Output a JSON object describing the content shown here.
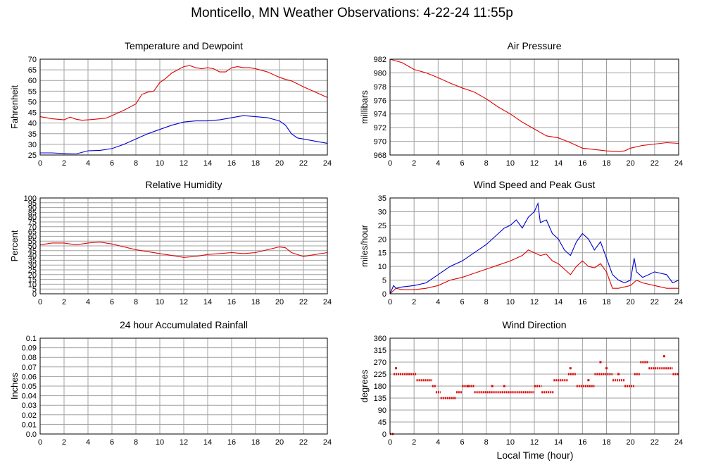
{
  "title": "Monticello, MN Weather Observations: 4-22-24 11:55p",
  "x_axis_label": "Local Time (hour)",
  "chart_data": [
    {
      "type": "line",
      "title": "Temperature and Dewpoint",
      "ylabel": "Fahrenheit",
      "xlabel": "",
      "xlim": [
        0,
        24
      ],
      "ylim": [
        25,
        70
      ],
      "xticks": [
        0,
        2,
        4,
        6,
        8,
        10,
        12,
        14,
        16,
        18,
        20,
        22,
        24
      ],
      "yticks": [
        "25",
        "30",
        "35",
        "40",
        "45",
        "50",
        "55",
        "60",
        "65",
        "70"
      ],
      "grid": true,
      "series": [
        {
          "color": "#e00000",
          "x": [
            0,
            1,
            2,
            2.5,
            3,
            3.5,
            4,
            5,
            5.5,
            6,
            7,
            8,
            8.5,
            9,
            9.5,
            10,
            10.5,
            11,
            11.5,
            12,
            12.5,
            13,
            13.5,
            14,
            14.5,
            15,
            15.5,
            16,
            16.5,
            17,
            17.5,
            18,
            19,
            20,
            20.5,
            21,
            22,
            23,
            24
          ],
          "y": [
            43,
            42,
            41.5,
            42.8,
            41.8,
            41.3,
            41.5,
            42,
            42.3,
            43.5,
            46,
            49,
            53.5,
            54.5,
            55,
            59,
            61,
            63.5,
            65,
            66.5,
            67,
            66,
            65.5,
            66,
            65.5,
            64,
            64,
            66,
            66.5,
            66,
            66,
            65.5,
            64,
            61.5,
            60.5,
            59.8,
            57,
            54.5,
            52
          ]
        },
        {
          "color": "#0000cc",
          "x": [
            0,
            1,
            2,
            3,
            4,
            5,
            6,
            7,
            8,
            9,
            10,
            11,
            12,
            13,
            14,
            15,
            16,
            17,
            18,
            19,
            20,
            20.5,
            21,
            21.5,
            22,
            23,
            24
          ],
          "y": [
            26,
            26,
            25.7,
            25.5,
            27,
            27.2,
            28,
            30,
            32.5,
            35,
            37,
            39,
            40.5,
            41,
            41,
            41.5,
            42.5,
            43.5,
            43,
            42.5,
            41,
            39,
            35,
            33,
            32.5,
            31.5,
            30.5
          ]
        }
      ]
    },
    {
      "type": "line",
      "title": "Air Pressure",
      "ylabel": "millibars",
      "xlabel": "",
      "xlim": [
        0,
        24
      ],
      "ylim": [
        968,
        982
      ],
      "xticks": [
        0,
        2,
        4,
        6,
        8,
        10,
        12,
        14,
        16,
        18,
        20,
        22,
        24
      ],
      "yticks": [
        "968",
        "970",
        "972",
        "974",
        "976",
        "978",
        "980",
        "982"
      ],
      "grid": true,
      "series": [
        {
          "color": "#e00000",
          "x": [
            0,
            1,
            2,
            3,
            4,
            5,
            6,
            7,
            8,
            9,
            10,
            11,
            12,
            13,
            14,
            15,
            16,
            17,
            18,
            19,
            19.5,
            20,
            21,
            22,
            23,
            24
          ],
          "y": [
            982,
            981.5,
            980.5,
            980,
            979.3,
            978.5,
            977.8,
            977.2,
            976.2,
            975,
            974,
            972.8,
            971.8,
            970.8,
            970.5,
            969.8,
            969,
            968.8,
            968.6,
            968.5,
            968.6,
            969,
            969.4,
            969.6,
            969.8,
            969.7
          ]
        }
      ]
    },
    {
      "type": "line",
      "title": "Relative Humidity",
      "ylabel": "Percent",
      "xlabel": "",
      "xlim": [
        0,
        24
      ],
      "ylim": [
        0,
        100
      ],
      "xticks": [
        0,
        2,
        4,
        6,
        8,
        10,
        12,
        14,
        16,
        18,
        20,
        22,
        24
      ],
      "yticks": [
        "0",
        "5",
        "10",
        "15",
        "20",
        "25",
        "30",
        "35",
        "40",
        "45",
        "50",
        "55",
        "60",
        "65",
        "70",
        "75",
        "80",
        "85",
        "90",
        "95",
        "100"
      ],
      "grid": true,
      "series": [
        {
          "color": "#e00000",
          "x": [
            0,
            1,
            2,
            3,
            4,
            5,
            6,
            7,
            8,
            9,
            10,
            11,
            12,
            13,
            14,
            15,
            16,
            17,
            18,
            19,
            20,
            20.5,
            21,
            22,
            23,
            24
          ],
          "y": [
            51,
            53,
            53,
            51,
            53,
            54,
            52,
            49,
            46,
            44,
            42,
            40,
            38,
            39,
            41,
            42,
            43,
            42,
            43,
            46,
            49,
            48,
            43,
            39,
            41,
            43
          ]
        }
      ]
    },
    {
      "type": "line",
      "title": "Wind Speed and Peak Gust",
      "ylabel": "miles/hour",
      "xlabel": "",
      "xlim": [
        0,
        24
      ],
      "ylim": [
        0,
        35
      ],
      "xticks": [
        0,
        2,
        4,
        6,
        8,
        10,
        12,
        14,
        16,
        18,
        20,
        22,
        24
      ],
      "yticks": [
        "0",
        "5",
        "10",
        "15",
        "20",
        "25",
        "30",
        "35"
      ],
      "grid": true,
      "series": [
        {
          "color": "#e00000",
          "x": [
            0,
            0.5,
            1,
            2,
            3,
            4,
            5,
            6,
            7,
            8,
            9,
            10,
            10.5,
            11,
            11.5,
            12,
            12.5,
            13,
            13.5,
            14,
            14.5,
            15,
            15.5,
            16,
            16.5,
            17,
            17.5,
            18,
            18.5,
            19,
            20,
            20.5,
            21,
            22,
            23,
            24
          ],
          "y": [
            0,
            2,
            1.5,
            1.5,
            2,
            3,
            5,
            6,
            7.5,
            9,
            10.5,
            12,
            13,
            14,
            16,
            15,
            14,
            14.5,
            12,
            11,
            9,
            7,
            10,
            12,
            10,
            9.5,
            11,
            8,
            2,
            2,
            3,
            5,
            4,
            3,
            2,
            2
          ]
        },
        {
          "color": "#0000cc",
          "x": [
            0,
            0.3,
            0.5,
            1,
            2,
            3,
            4,
            5,
            6,
            7,
            8,
            9,
            9.5,
            10,
            10.5,
            11,
            11.5,
            12,
            12.3,
            12.5,
            13,
            13.5,
            14,
            14.5,
            15,
            15.5,
            16,
            16.5,
            17,
            17.5,
            18,
            18.5,
            19,
            19.5,
            20,
            20.3,
            20.5,
            21,
            22,
            23,
            23.5,
            24
          ],
          "y": [
            0,
            3,
            2,
            2.5,
            3,
            4,
            7,
            10,
            12,
            15,
            18,
            22,
            24,
            25,
            27,
            24,
            28,
            30,
            33,
            26,
            27,
            22,
            20,
            16,
            14,
            19,
            22,
            20,
            16,
            19,
            13,
            7,
            5,
            4,
            5,
            13,
            8,
            6,
            8,
            7,
            4,
            5
          ]
        }
      ]
    },
    {
      "type": "line",
      "title": "24 hour Accumulated Rainfall",
      "ylabel": "Inches",
      "xlabel": "",
      "xlim": [
        0,
        24
      ],
      "ylim": [
        0,
        0.1
      ],
      "xticks": [
        0,
        2,
        4,
        6,
        8,
        10,
        12,
        14,
        16,
        18,
        20,
        22,
        24
      ],
      "yticks": [
        "0.0",
        "0.01",
        "0.02",
        "0.03",
        "0.04",
        "0.05",
        "0.06",
        "0.07",
        "0.08",
        "0.09",
        "0.1"
      ],
      "grid": true,
      "series": [
        {
          "color": "#e00000",
          "x": [
            0,
            24
          ],
          "y": [
            0,
            0
          ]
        }
      ]
    },
    {
      "type": "scatter",
      "title": "Wind Direction",
      "ylabel": "degrees",
      "xlabel": "Local Time (hour)",
      "xlim": [
        0,
        24
      ],
      "ylim": [
        0,
        360
      ],
      "xticks": [
        0,
        2,
        4,
        6,
        8,
        10,
        12,
        14,
        16,
        18,
        20,
        22,
        24
      ],
      "yticks": [
        "0",
        "45",
        "90",
        "135",
        "180",
        "225",
        "270",
        "315",
        "360"
      ],
      "grid": true,
      "segments": [
        {
          "x0": 0.0,
          "x1": 0.3,
          "y": 0
        },
        {
          "x0": 0.3,
          "x1": 2.2,
          "y": 225
        },
        {
          "x0": 2.2,
          "x1": 3.5,
          "y": 202
        },
        {
          "x0": 3.5,
          "x1": 3.8,
          "y": 180
        },
        {
          "x0": 3.8,
          "x1": 4.2,
          "y": 157
        },
        {
          "x0": 4.2,
          "x1": 5.5,
          "y": 135
        },
        {
          "x0": 5.5,
          "x1": 6.0,
          "y": 157
        },
        {
          "x0": 6.0,
          "x1": 7.0,
          "y": 180
        },
        {
          "x0": 7.0,
          "x1": 12.0,
          "y": 157
        },
        {
          "x0": 12.0,
          "x1": 12.6,
          "y": 180
        },
        {
          "x0": 12.6,
          "x1": 13.6,
          "y": 157
        },
        {
          "x0": 13.6,
          "x1": 14.8,
          "y": 202
        },
        {
          "x0": 14.8,
          "x1": 15.5,
          "y": 225
        },
        {
          "x0": 15.5,
          "x1": 17.0,
          "y": 180
        },
        {
          "x0": 17.0,
          "x1": 18.5,
          "y": 225
        },
        {
          "x0": 18.5,
          "x1": 19.5,
          "y": 202
        },
        {
          "x0": 19.5,
          "x1": 20.3,
          "y": 180
        },
        {
          "x0": 20.3,
          "x1": 20.8,
          "y": 225
        },
        {
          "x0": 20.8,
          "x1": 21.5,
          "y": 270
        },
        {
          "x0": 21.5,
          "x1": 23.5,
          "y": 247
        },
        {
          "x0": 23.5,
          "x1": 24.0,
          "y": 225
        }
      ],
      "points": [
        {
          "x": 0.5,
          "y": 247
        },
        {
          "x": 6.5,
          "y": 180
        },
        {
          "x": 8.5,
          "y": 180
        },
        {
          "x": 9.5,
          "y": 180
        },
        {
          "x": 15.0,
          "y": 247
        },
        {
          "x": 16.5,
          "y": 202
        },
        {
          "x": 17.5,
          "y": 270
        },
        {
          "x": 18.0,
          "y": 247
        },
        {
          "x": 19.0,
          "y": 225
        },
        {
          "x": 22.8,
          "y": 292
        }
      ],
      "color": "#e00000"
    }
  ]
}
